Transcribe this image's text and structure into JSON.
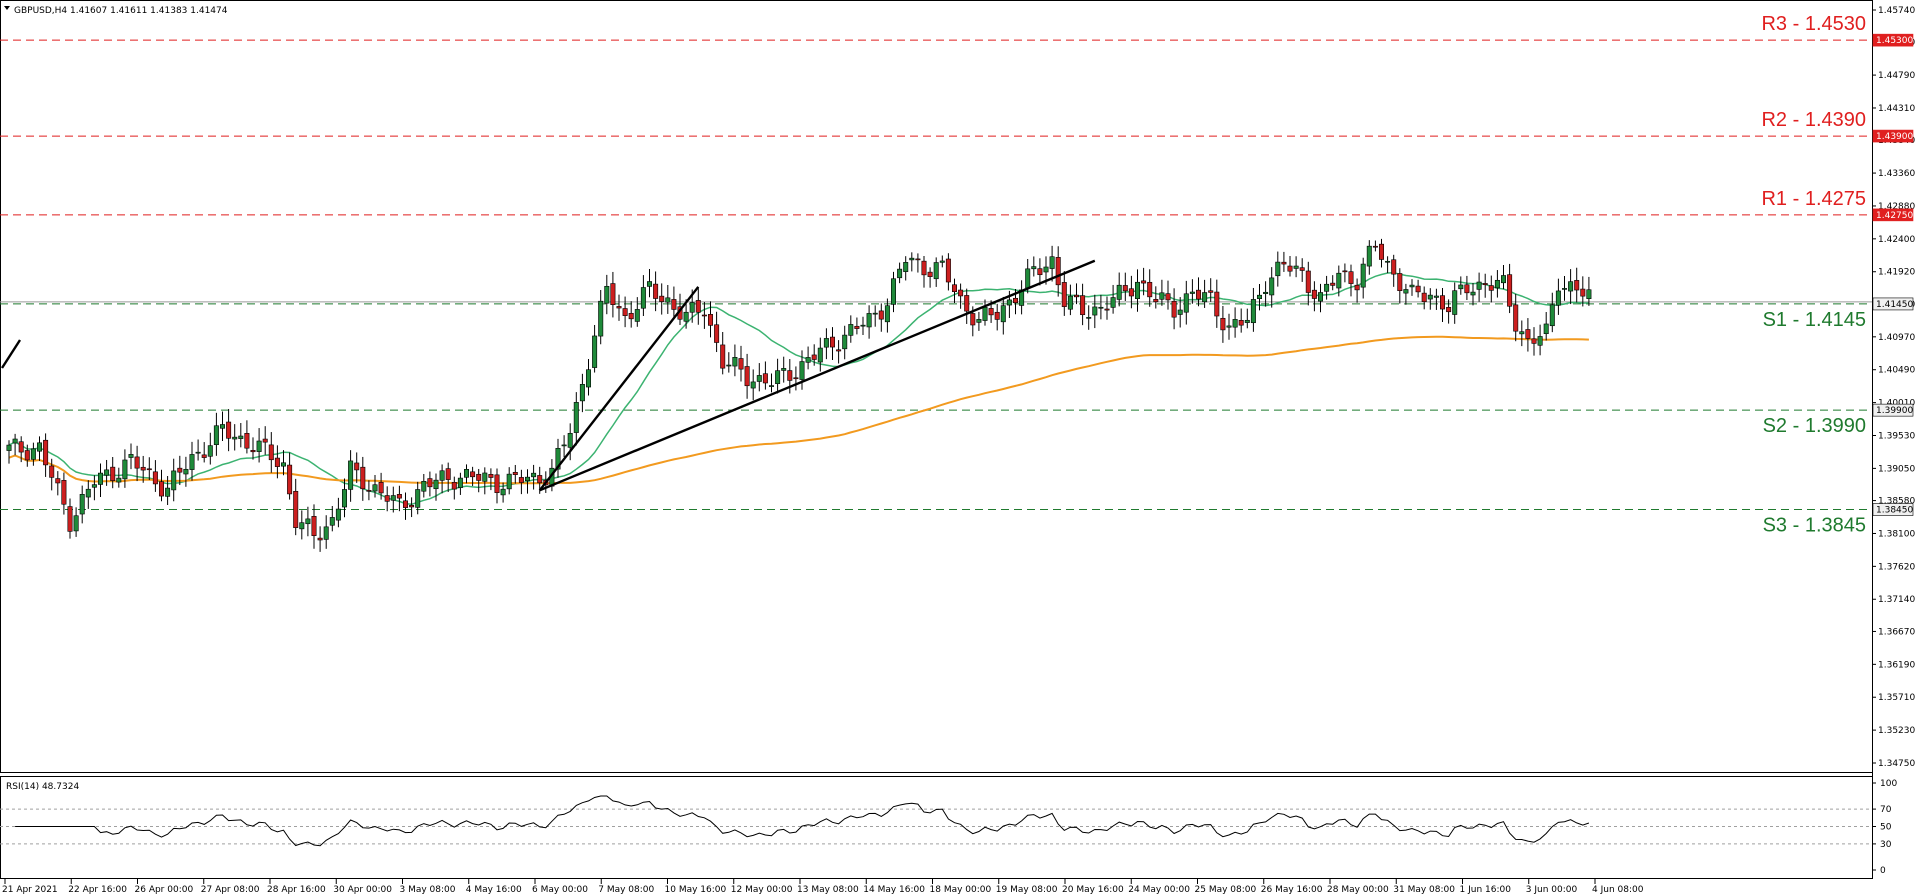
{
  "header": {
    "symbol_line": "GBPUSD,H4  1.41607 1.41611 1.41383 1.41474"
  },
  "rsi_header": "RSI(14) 48.7324",
  "colors": {
    "bull": "#1f8a3a",
    "bear": "#cc1f1f",
    "resistance": "#e01f1f",
    "support": "#1f7a2e",
    "ma_fast": "#3cb371",
    "ma_slow": "#f29a1f",
    "trendline": "#000000",
    "rsi": "#000000"
  },
  "chart_data": {
    "type": "candlestick",
    "price_ylim": [
      1.3475,
      1.4574
    ],
    "price_ticks": [
      "1.45740",
      "1.45270",
      "1.44790",
      "1.44310",
      "1.43840",
      "1.43360",
      "1.42880",
      "1.42400",
      "1.41920",
      "1.41450",
      "1.40970",
      "1.40490",
      "1.40010",
      "1.39530",
      "1.39050",
      "1.38580",
      "1.38100",
      "1.37620",
      "1.37140",
      "1.36670",
      "1.36190",
      "1.35710",
      "1.35230",
      "1.34750"
    ],
    "levels": [
      {
        "label": "R3 - 1.4530",
        "value": 1.453,
        "tag": "1.45300",
        "kind": "resistance"
      },
      {
        "label": "R2 - 1.4390",
        "value": 1.439,
        "tag": "1.43900",
        "kind": "resistance"
      },
      {
        "label": "R1 - 1.4275",
        "value": 1.4275,
        "tag": "1.42750",
        "kind": "resistance"
      },
      {
        "label": "S1 - 1.4145",
        "value": 1.4145,
        "tag": "1.41450",
        "kind": "support"
      },
      {
        "label": "S2 - 1.3990",
        "value": 1.399,
        "tag": "1.39900",
        "kind": "support"
      },
      {
        "label": "S3 - 1.3845",
        "value": 1.3845,
        "tag": "1.38450",
        "kind": "support"
      }
    ],
    "x_labels": [
      "21 Apr 2021",
      "22 Apr 16:00",
      "26 Apr 00:00",
      "27 Apr 08:00",
      "28 Apr 16:00",
      "30 Apr 00:00",
      "3 May 08:00",
      "4 May 16:00",
      "6 May 00:00",
      "7 May 08:00",
      "10 May 16:00",
      "12 May 00:00",
      "13 May 08:00",
      "14 May 16:00",
      "18 May 00:00",
      "19 May 08:00",
      "20 May 16:00",
      "24 May 00:00",
      "25 May 08:00",
      "26 May 16:00",
      "28 May 00:00",
      "31 May 08:00",
      "1 Jun 16:00",
      "3 Jun 00:00",
      "4 Jun 08:00"
    ],
    "rsi_ticks": [
      "100",
      "70",
      "50",
      "30",
      "0"
    ],
    "rsi_levels": [
      70,
      50,
      30
    ],
    "anchors": [
      [
        0,
        1.3932
      ],
      [
        5,
        1.3935
      ],
      [
        8,
        1.387
      ],
      [
        10,
        1.383
      ],
      [
        14,
        1.3885
      ],
      [
        20,
        1.3915
      ],
      [
        26,
        1.3875
      ],
      [
        30,
        1.392
      ],
      [
        35,
        1.396
      ],
      [
        40,
        1.394
      ],
      [
        45,
        1.391
      ],
      [
        47,
        1.383
      ],
      [
        50,
        1.3805
      ],
      [
        53,
        1.383
      ],
      [
        56,
        1.39
      ],
      [
        61,
        1.387
      ],
      [
        64,
        1.3848
      ],
      [
        68,
        1.388
      ],
      [
        74,
        1.3895
      ],
      [
        80,
        1.3885
      ],
      [
        86,
        1.389
      ],
      [
        89,
        1.39
      ],
      [
        92,
        1.396
      ],
      [
        94,
        1.403
      ],
      [
        96,
        1.41
      ],
      [
        98,
        1.4165
      ],
      [
        101,
        1.4125
      ],
      [
        105,
        1.4165
      ],
      [
        108,
        1.415
      ],
      [
        111,
        1.4125
      ],
      [
        114,
        1.414
      ],
      [
        117,
        1.406
      ],
      [
        121,
        1.404
      ],
      [
        125,
        1.403
      ],
      [
        129,
        1.405
      ],
      [
        133,
        1.4075
      ],
      [
        137,
        1.41
      ],
      [
        141,
        1.412
      ],
      [
        144,
        1.415
      ],
      [
        147,
        1.421
      ],
      [
        150,
        1.42
      ],
      [
        153,
        1.4195
      ],
      [
        156,
        1.415
      ],
      [
        159,
        1.412
      ],
      [
        162,
        1.413
      ],
      [
        165,
        1.416
      ],
      [
        168,
        1.419
      ],
      [
        171,
        1.421
      ],
      [
        173,
        1.415
      ],
      [
        176,
        1.4135
      ],
      [
        179,
        1.414
      ],
      [
        182,
        1.4155
      ],
      [
        185,
        1.418
      ],
      [
        188,
        1.415
      ],
      [
        191,
        1.414
      ],
      [
        194,
        1.416
      ],
      [
        197,
        1.415
      ],
      [
        200,
        1.411
      ],
      [
        203,
        1.412
      ],
      [
        206,
        1.418
      ],
      [
        209,
        1.42
      ],
      [
        212,
        1.419
      ],
      [
        215,
        1.415
      ],
      [
        218,
        1.419
      ],
      [
        221,
        1.418
      ],
      [
        224,
        1.423
      ],
      [
        227,
        1.419
      ],
      [
        230,
        1.4155
      ],
      [
        233,
        1.416
      ],
      [
        236,
        1.414
      ],
      [
        239,
        1.417
      ],
      [
        242,
        1.4175
      ],
      [
        245,
        1.417
      ],
      [
        247,
        1.412
      ],
      [
        249,
        1.409
      ],
      [
        252,
        1.41
      ],
      [
        254,
        1.418
      ],
      [
        257,
        1.4165
      ],
      [
        259,
        1.4155
      ]
    ],
    "ma_fast_period": 50,
    "ma_slow_period": 200,
    "trendlines": [
      {
        "from": [
          87,
          1.3873
        ],
        "to": [
          113,
          1.417
        ]
      },
      {
        "from": [
          87,
          1.3873
        ],
        "to": [
          178,
          1.4208
        ]
      }
    ]
  }
}
